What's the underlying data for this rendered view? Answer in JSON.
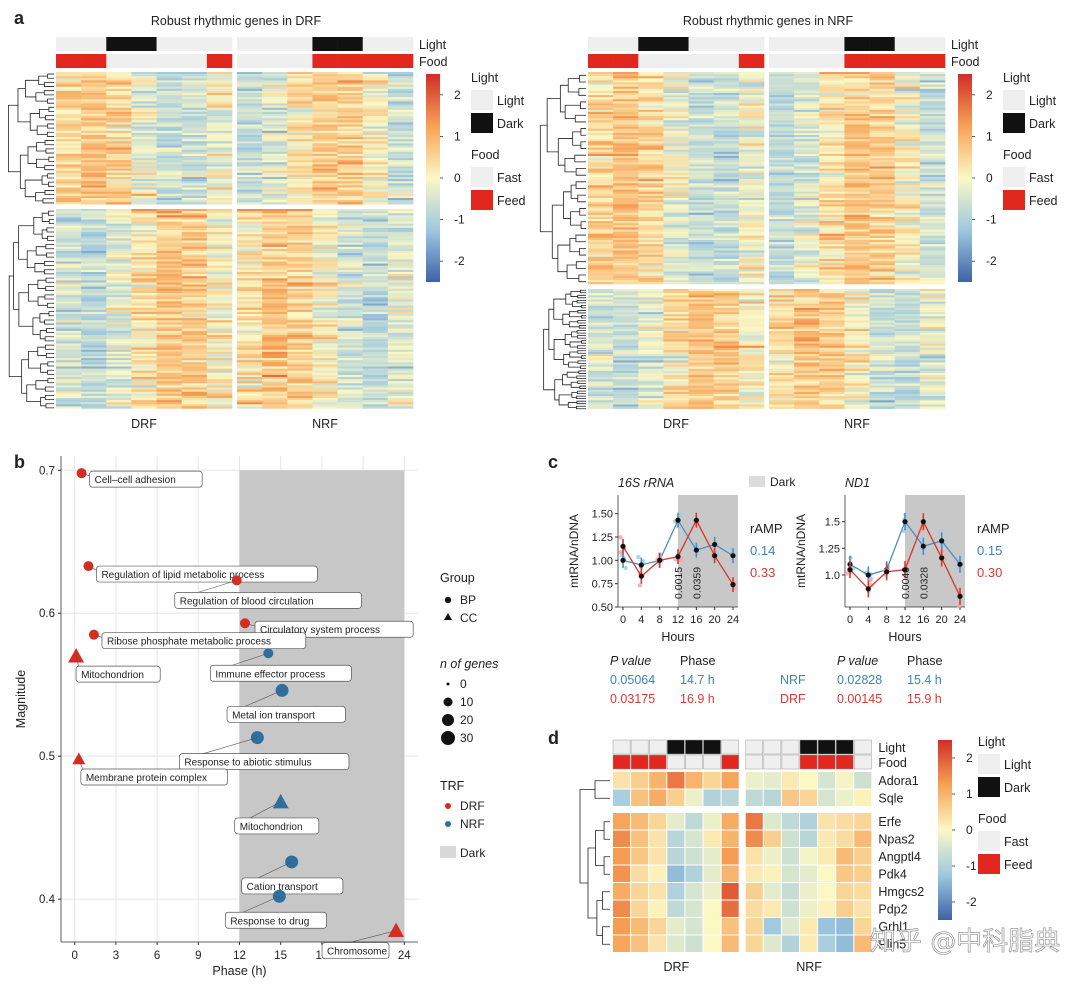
{
  "panel_letters": {
    "a": "a",
    "b": "b",
    "c": "c",
    "d": "d"
  },
  "watermark": "知乎 @中科脂典",
  "colors": {
    "red": "#d62d20",
    "blue": "#2e6f9e",
    "dark_box": "#c8c8c8",
    "nrf_text": "#3c84b8",
    "drf_text": "#d43b2f"
  },
  "chart_data": [
    {
      "id": "panel-a-drf",
      "type": "heatmap",
      "title": "Robust rhythmic genes in DRF",
      "columns_groups": [
        "DRF",
        "NRF"
      ],
      "n_columns_per_group": 7,
      "annotation_rows": [
        "Light",
        "Food"
      ],
      "light_pattern": {
        "DRF": [
          "Light",
          "Light",
          "Dark",
          "Dark",
          "Light",
          "Light",
          "Light"
        ],
        "NRF": [
          "Light",
          "Light",
          "Light",
          "Dark",
          "Dark",
          "Light",
          "Light"
        ]
      },
      "food_pattern": {
        "DRF": [
          "Feed",
          "Feed",
          "Fast",
          "Fast",
          "Fast",
          "Fast",
          "Feed"
        ],
        "NRF": [
          "Fast",
          "Fast",
          "Fast",
          "Feed",
          "Feed",
          "Feed",
          "Feed"
        ]
      },
      "color_scale": {
        "min": -2.5,
        "max": 2.5,
        "ticks": [
          2,
          1,
          0,
          -1,
          -2
        ]
      },
      "legend": {
        "light_title": "Light",
        "light_items": [
          "Light",
          "Dark"
        ],
        "food_title": "Food",
        "food_items": [
          "Fast",
          "Feed"
        ]
      }
    },
    {
      "id": "panel-a-nrf",
      "type": "heatmap",
      "title": "Robust rhythmic genes in NRF",
      "columns_groups": [
        "DRF",
        "NRF"
      ],
      "n_columns_per_group": 7,
      "annotation_rows": [
        "Light",
        "Food"
      ],
      "light_pattern": {
        "DRF": [
          "Light",
          "Light",
          "Dark",
          "Dark",
          "Light",
          "Light",
          "Light"
        ],
        "NRF": [
          "Light",
          "Light",
          "Light",
          "Dark",
          "Dark",
          "Light",
          "Light"
        ]
      },
      "food_pattern": {
        "DRF": [
          "Feed",
          "Feed",
          "Fast",
          "Fast",
          "Fast",
          "Fast",
          "Feed"
        ],
        "NRF": [
          "Fast",
          "Fast",
          "Fast",
          "Feed",
          "Feed",
          "Feed",
          "Feed"
        ]
      },
      "color_scale": {
        "min": -2.5,
        "max": 2.5,
        "ticks": [
          2,
          1,
          0,
          -1,
          -2
        ]
      },
      "legend": {
        "light_title": "Light",
        "light_items": [
          "Light",
          "Dark"
        ],
        "food_title": "Food",
        "food_items": [
          "Fast",
          "Feed"
        ]
      }
    },
    {
      "id": "panel-b",
      "type": "scatter",
      "xlabel": "Phase (h)",
      "ylabel": "Magnitude",
      "xlim": [
        -1,
        25
      ],
      "ylim": [
        0.37,
        0.71
      ],
      "xticks": [
        0,
        3,
        6,
        9,
        12,
        15,
        18,
        21,
        24
      ],
      "yticks": [
        0.4,
        0.5,
        0.6,
        0.7
      ],
      "dark_region": [
        12,
        24
      ],
      "points": [
        {
          "label": "Cell–cell adhesion",
          "x": 0.5,
          "y": 0.698,
          "group": "BP",
          "trf": "DRF",
          "n": 10
        },
        {
          "label": "Regulation of lipid metabolic process",
          "x": 1.0,
          "y": 0.633,
          "group": "BP",
          "trf": "DRF",
          "n": 10
        },
        {
          "label": "Regulation of blood circulation",
          "x": 11.8,
          "y": 0.623,
          "group": "BP",
          "trf": "DRF",
          "n": 10
        },
        {
          "label": "Circulatory system process",
          "x": 12.4,
          "y": 0.593,
          "group": "BP",
          "trf": "DRF",
          "n": 10
        },
        {
          "label": "Ribose phosphate metabolic process",
          "x": 1.4,
          "y": 0.585,
          "group": "BP",
          "trf": "DRF",
          "n": 10
        },
        {
          "label": "Mitochondrion",
          "x": 0.1,
          "y": 0.57,
          "group": "CC",
          "trf": "DRF",
          "n": 20
        },
        {
          "label": "Immune effector process",
          "x": 14.1,
          "y": 0.572,
          "group": "BP",
          "trf": "NRF",
          "n": 10
        },
        {
          "label": "Metal ion transport",
          "x": 15.1,
          "y": 0.546,
          "group": "BP",
          "trf": "NRF",
          "n": 20
        },
        {
          "label": "Response to abiotic stimulus",
          "x": 13.3,
          "y": 0.513,
          "group": "BP",
          "trf": "NRF",
          "n": 20
        },
        {
          "label": "Membrane protein complex",
          "x": 0.3,
          "y": 0.498,
          "group": "CC",
          "trf": "DRF",
          "n": 10
        },
        {
          "label": "Mitochondrion",
          "x": 15.0,
          "y": 0.468,
          "group": "CC",
          "trf": "NRF",
          "n": 20
        },
        {
          "label": "Cation transport",
          "x": 15.8,
          "y": 0.426,
          "group": "BP",
          "trf": "NRF",
          "n": 20
        },
        {
          "label": "Response to drug",
          "x": 14.9,
          "y": 0.402,
          "group": "BP",
          "trf": "NRF",
          "n": 20
        },
        {
          "label": "Chromosome",
          "x": 23.4,
          "y": 0.378,
          "group": "CC",
          "trf": "DRF",
          "n": 20
        }
      ],
      "legend": {
        "group_title": "Group",
        "group_items": [
          "BP",
          "CC"
        ],
        "n_title": "n of genes",
        "n_items": [
          "0",
          "10",
          "20",
          "30"
        ],
        "trf_title": "TRF",
        "trf_items": [
          "DRF",
          "NRF"
        ],
        "dark_label": "Dark"
      }
    },
    {
      "id": "panel-c",
      "type": "line",
      "xlabel": "Hours",
      "ylabel": "mtRNA/nDNA",
      "x": [
        0,
        4,
        8,
        12,
        16,
        20,
        24
      ],
      "dark_label": "Dark",
      "ramp_label": "rAMP",
      "stats_headers": {
        "p": "P value",
        "phase": "Phase"
      },
      "subplots": [
        {
          "title": "16S rRNA",
          "ylim": [
            0.5,
            1.7
          ],
          "yticks": [
            0.5,
            0.75,
            1.0,
            1.25,
            1.5
          ],
          "ytick_labels": [
            "0.50",
            "0.75",
            "1.00",
            "1.25",
            "1.50"
          ],
          "series": [
            {
              "name": "NRF",
              "values": [
                1.0,
                0.95,
                1.0,
                1.43,
                1.11,
                1.17,
                1.05
              ],
              "ramp": "0.14",
              "p_value": "0.05064",
              "phase": "14.7 h"
            },
            {
              "name": "DRF",
              "values": [
                1.15,
                0.83,
                1.0,
                1.04,
                1.43,
                1.05,
                0.74
              ],
              "ramp": "0.33",
              "p_value": "0.03175",
              "phase": "16.9 h"
            }
          ],
          "vertical_labels": [
            "0.0015",
            "0.0359"
          ]
        },
        {
          "title": "ND1",
          "ylim": [
            0.7,
            1.75
          ],
          "yticks": [
            1.0,
            1.25,
            1.5
          ],
          "ytick_labels": [
            "1.0",
            "1.25",
            "1.5"
          ],
          "series": [
            {
              "name": "NRF",
              "values": [
                1.1,
                1.0,
                1.05,
                1.5,
                1.27,
                1.32,
                1.1
              ],
              "ramp": "0.15",
              "p_value": "0.02828",
              "phase": "15.4 h"
            },
            {
              "name": "DRF",
              "values": [
                1.05,
                0.87,
                1.03,
                1.05,
                1.5,
                1.16,
                0.8
              ],
              "ramp": "0.30",
              "p_value": "0.00145",
              "phase": "15.9 h"
            }
          ],
          "vertical_labels": [
            "0.0040",
            "0.0328"
          ]
        }
      ]
    },
    {
      "id": "panel-d",
      "type": "heatmap",
      "genes": [
        "Adora1",
        "Sqle",
        "Erfe",
        "Npas2",
        "Angptl4",
        "Pdk4",
        "Hmgcs2",
        "Pdp2",
        "Grhl1",
        "Plin5"
      ],
      "columns_groups": [
        "DRF",
        "NRF"
      ],
      "n_columns_per_group": 7,
      "annotation_rows": [
        "Light",
        "Food"
      ],
      "light_pattern": {
        "DRF": [
          "Light",
          "Light",
          "Light",
          "Dark",
          "Dark",
          "Dark",
          "Light"
        ],
        "NRF": [
          "Light",
          "Light",
          "Light",
          "Dark",
          "Dark",
          "Dark",
          "Light"
        ]
      },
      "food_pattern": {
        "DRF": [
          "Feed",
          "Feed",
          "Feed",
          "Fast",
          "Fast",
          "Fast",
          "Feed"
        ],
        "NRF": [
          "Fast",
          "Fast",
          "Fast",
          "Feed",
          "Feed",
          "Feed",
          "Fast"
        ]
      },
      "values": {
        "Adora1": [
          0.3,
          0.6,
          1.0,
          1.7,
          1.0,
          0.5,
          1.2,
          -0.2,
          -0.3,
          0.2,
          0.0,
          -0.5,
          -0.1,
          -0.6
        ],
        "Sqle": [
          -1.1,
          0.8,
          1.1,
          0.6,
          -0.2,
          -1.0,
          -0.9,
          -0.8,
          -0.9,
          0.7,
          0.5,
          -0.5,
          -0.2,
          0.1
        ],
        "Erfe": [
          1.2,
          0.9,
          0.5,
          -0.3,
          -0.8,
          -0.2,
          1.1,
          1.7,
          -0.4,
          -0.8,
          -1.0,
          0.3,
          0.4,
          0.5
        ],
        "Npas2": [
          1.5,
          0.8,
          0.3,
          -0.9,
          -0.5,
          0.2,
          1.0,
          1.5,
          0.6,
          -0.6,
          -0.9,
          0.2,
          0.4,
          0.9
        ],
        "Angptl4": [
          1.3,
          0.7,
          0.3,
          -0.9,
          -0.6,
          -0.3,
          1.3,
          0.3,
          -0.2,
          -0.6,
          -0.1,
          0.2,
          0.9,
          0.6
        ],
        "Pdk4": [
          1.4,
          0.4,
          0.1,
          -1.4,
          -1.0,
          -0.3,
          1.0,
          0.2,
          0.1,
          -0.5,
          -0.3,
          0.0,
          0.7,
          0.6
        ],
        "Hmgcs2": [
          1.1,
          0.5,
          0.3,
          -1.0,
          -0.5,
          -0.2,
          2.0,
          0.6,
          -0.3,
          -0.7,
          -0.2,
          0.0,
          0.5,
          0.4
        ],
        "Pdp2": [
          1.5,
          0.5,
          0.1,
          -0.8,
          -0.5,
          0.0,
          1.8,
          0.4,
          0.2,
          -0.6,
          -0.2,
          0.1,
          0.6,
          0.3
        ],
        "Grhl1": [
          1.3,
          0.9,
          0.5,
          -0.3,
          -0.5,
          0.0,
          0.8,
          0.5,
          -1.2,
          -0.4,
          0.2,
          -1.3,
          -1.4,
          0.5
        ],
        "Plin5": [
          1.2,
          0.8,
          0.3,
          -0.4,
          -0.6,
          0.0,
          0.9,
          0.5,
          -0.4,
          -1.0,
          0.2,
          -1.1,
          -1.4,
          0.9
        ]
      },
      "color_scale": {
        "min": -2.5,
        "max": 2.5,
        "ticks": [
          2,
          1,
          0,
          -1,
          -2
        ]
      },
      "legend": {
        "light_title": "Light",
        "light_items": [
          "Light",
          "Dark"
        ],
        "food_title": "Food",
        "food_items": [
          "Fast",
          "Feed"
        ]
      }
    }
  ]
}
